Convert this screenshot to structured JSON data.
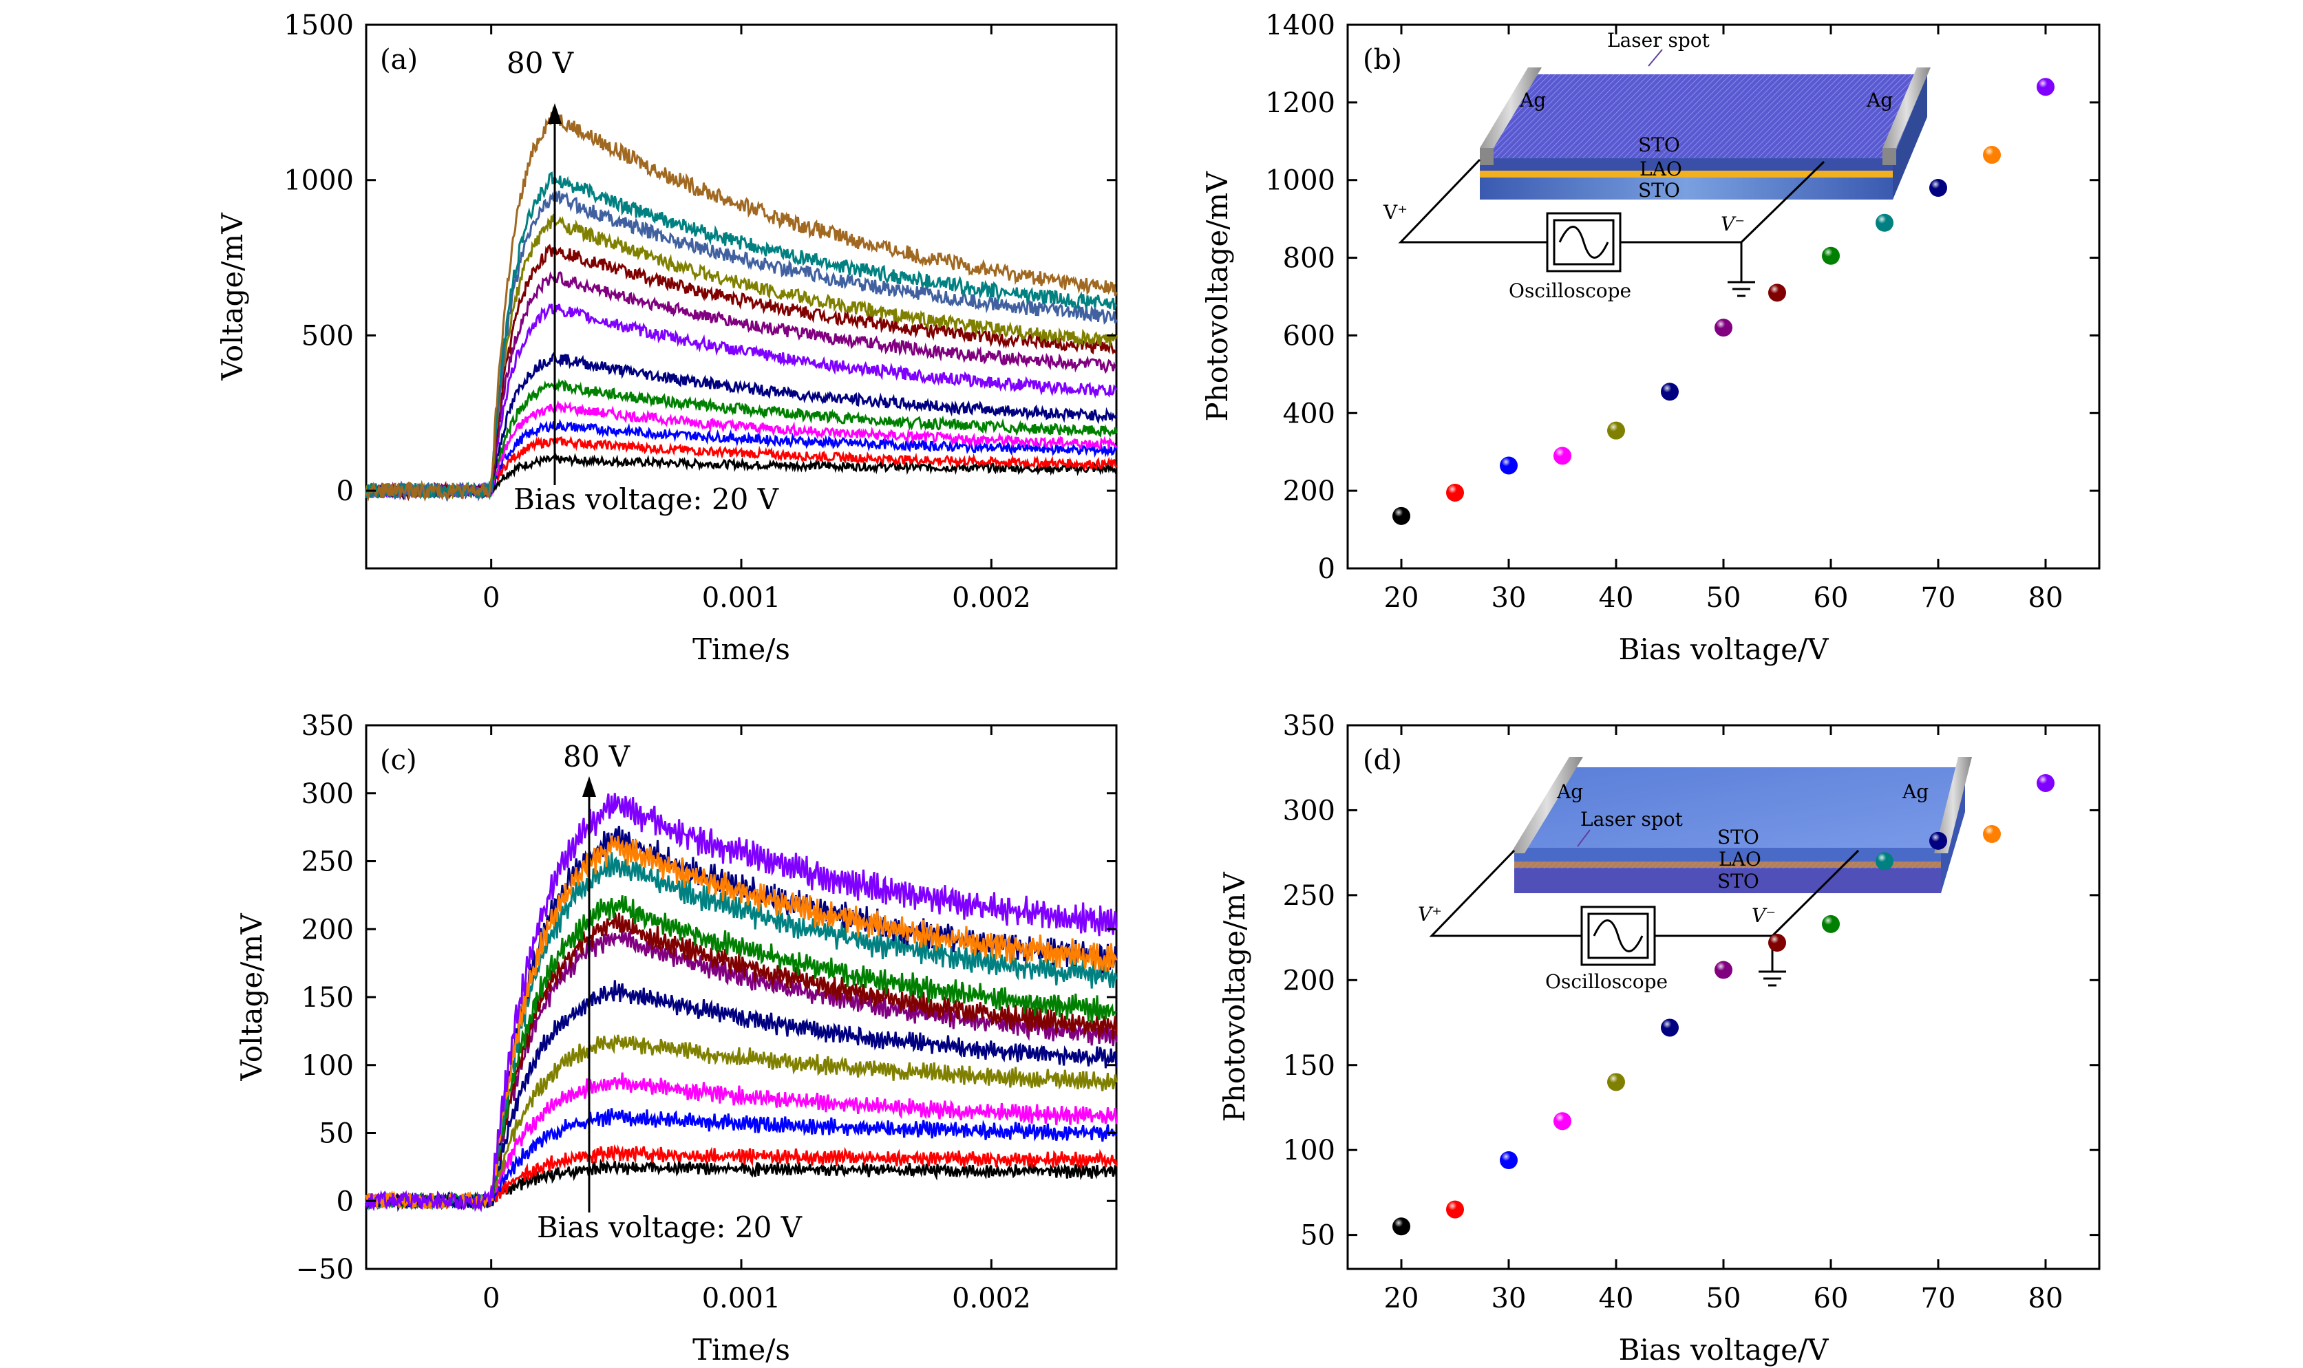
{
  "figure": {
    "colors": [
      "#000000",
      "#ff0000",
      "#0000ff",
      "#ff00ff",
      "#808000",
      "#000080",
      "#800080",
      "#008000",
      "#800000",
      "#008080",
      "#000080",
      "#ff8000",
      "#8000ff"
    ],
    "bias_voltages": [
      20,
      25,
      30,
      35,
      40,
      45,
      50,
      55,
      60,
      65,
      70,
      75,
      80
    ]
  },
  "chart_data": [
    {
      "panel": "(a)",
      "type": "line",
      "xlabel": "Time/s",
      "ylabel": "Voltage/mV",
      "xlim": [
        -0.0005,
        0.0025
      ],
      "ylim": [
        -250,
        1500
      ],
      "xticks": [
        0,
        0.001,
        0.002
      ],
      "xtick_labels": [
        "0",
        "0.001",
        "0.002"
      ],
      "yticks": [
        0,
        500,
        1000,
        1500
      ],
      "ytick_labels": [
        "0",
        "500",
        "1000",
        "1500"
      ],
      "annotation_top": "80 V",
      "annotation_bottom": "Bias voltage: 20 V",
      "series": [
        {
          "color": "#000000",
          "peak": 100,
          "end": 70
        },
        {
          "color": "#ff0000",
          "peak": 160,
          "end": 85
        },
        {
          "color": "#0000ff",
          "peak": 210,
          "end": 130
        },
        {
          "color": "#ff00ff",
          "peak": 270,
          "end": 150
        },
        {
          "color": "#008000",
          "peak": 340,
          "end": 190
        },
        {
          "color": "#000080",
          "peak": 430,
          "end": 240
        },
        {
          "color": "#8000ff",
          "peak": 590,
          "end": 320
        },
        {
          "color": "#800080",
          "peak": 690,
          "end": 400
        },
        {
          "color": "#800000",
          "peak": 780,
          "end": 460
        },
        {
          "color": "#808000",
          "peak": 870,
          "end": 480
        },
        {
          "color": "#4060a0",
          "peak": 950,
          "end": 560
        },
        {
          "color": "#008080",
          "peak": 1010,
          "end": 600
        },
        {
          "color": "#a06820",
          "peak": 1210,
          "end": 650
        }
      ]
    },
    {
      "panel": "(b)",
      "type": "scatter",
      "xlabel": "Bias voltage/V",
      "ylabel": "Photovoltage/mV",
      "xlim": [
        15,
        85
      ],
      "ylim": [
        0,
        1400
      ],
      "xticks": [
        20,
        30,
        40,
        50,
        60,
        70,
        80
      ],
      "yticks": [
        0,
        200,
        400,
        600,
        800,
        1000,
        1200,
        1400
      ],
      "points": [
        {
          "x": 20,
          "y": 135,
          "color": "#000000"
        },
        {
          "x": 25,
          "y": 195,
          "color": "#ff0000"
        },
        {
          "x": 30,
          "y": 265,
          "color": "#0000ff"
        },
        {
          "x": 35,
          "y": 290,
          "color": "#ff00ff"
        },
        {
          "x": 40,
          "y": 355,
          "color": "#808000"
        },
        {
          "x": 45,
          "y": 455,
          "color": "#000080"
        },
        {
          "x": 50,
          "y": 620,
          "color": "#800080"
        },
        {
          "x": 55,
          "y": 710,
          "color": "#800000"
        },
        {
          "x": 60,
          "y": 805,
          "color": "#008000"
        },
        {
          "x": 65,
          "y": 890,
          "color": "#008080"
        },
        {
          "x": 70,
          "y": 980,
          "color": "#000080"
        },
        {
          "x": 75,
          "y": 1065,
          "color": "#ff8000"
        },
        {
          "x": 80,
          "y": 1240,
          "color": "#8000ff"
        }
      ],
      "inset": {
        "laser_spot": "Laser spot",
        "ag_left": "Ag",
        "ag_right": "Ag",
        "layer_top": "STO",
        "layer_mid": "LAO",
        "layer_bottom": "STO",
        "v_plus": "V⁺",
        "v_minus": "V⁻",
        "oscilloscope": "Oscilloscope"
      }
    },
    {
      "panel": "(c)",
      "type": "line",
      "xlabel": "Time/s",
      "ylabel": "Voltage/mV",
      "xlim": [
        -0.0005,
        0.0025
      ],
      "ylim": [
        -50,
        350
      ],
      "xticks": [
        0,
        0.001,
        0.002
      ],
      "xtick_labels": [
        "0",
        "0.001",
        "0.002"
      ],
      "yticks": [
        -50,
        0,
        50,
        100,
        150,
        200,
        250,
        300,
        350
      ],
      "ytick_labels": [
        "−50",
        "0",
        "50",
        "100",
        "150",
        "200",
        "250",
        "300",
        "350"
      ],
      "annotation_top": "80 V",
      "annotation_bottom": "Bias voltage: 20 V",
      "series": [
        {
          "color": "#000000",
          "peak": 25,
          "end": 22
        },
        {
          "color": "#ff0000",
          "peak": 35,
          "end": 30
        },
        {
          "color": "#0000ff",
          "peak": 62,
          "end": 50
        },
        {
          "color": "#ff00ff",
          "peak": 88,
          "end": 62
        },
        {
          "color": "#808000",
          "peak": 118,
          "end": 88
        },
        {
          "color": "#000080",
          "peak": 155,
          "end": 105
        },
        {
          "color": "#800080",
          "peak": 195,
          "end": 122
        },
        {
          "color": "#800000",
          "peak": 205,
          "end": 128
        },
        {
          "color": "#008000",
          "peak": 218,
          "end": 140
        },
        {
          "color": "#008080",
          "peak": 248,
          "end": 165
        },
        {
          "color": "#000080",
          "peak": 268,
          "end": 178
        },
        {
          "color": "#ff8000",
          "peak": 262,
          "end": 178
        },
        {
          "color": "#8000ff",
          "peak": 292,
          "end": 205
        }
      ]
    },
    {
      "panel": "(d)",
      "type": "scatter",
      "xlabel": "Bias voltage/V",
      "ylabel": "Photovoltage/mV",
      "xlim": [
        15,
        85
      ],
      "ylim": [
        30,
        350
      ],
      "xticks": [
        20,
        30,
        40,
        50,
        60,
        70,
        80
      ],
      "yticks": [
        50,
        100,
        150,
        200,
        250,
        300,
        350
      ],
      "points": [
        {
          "x": 20,
          "y": 55,
          "color": "#000000"
        },
        {
          "x": 25,
          "y": 65,
          "color": "#ff0000"
        },
        {
          "x": 30,
          "y": 94,
          "color": "#0000ff"
        },
        {
          "x": 35,
          "y": 117,
          "color": "#ff00ff"
        },
        {
          "x": 40,
          "y": 140,
          "color": "#808000"
        },
        {
          "x": 45,
          "y": 172,
          "color": "#000080"
        },
        {
          "x": 50,
          "y": 206,
          "color": "#800080"
        },
        {
          "x": 55,
          "y": 222,
          "color": "#800000"
        },
        {
          "x": 60,
          "y": 233,
          "color": "#008000"
        },
        {
          "x": 65,
          "y": 270,
          "color": "#008080"
        },
        {
          "x": 70,
          "y": 282,
          "color": "#000080"
        },
        {
          "x": 75,
          "y": 286,
          "color": "#ff8000"
        },
        {
          "x": 80,
          "y": 316,
          "color": "#8000ff"
        }
      ],
      "inset": {
        "laser_spot": "Laser spot",
        "ag_left": "Ag",
        "ag_right": "Ag",
        "layer_top": "STO",
        "layer_mid": "LAO",
        "layer_bottom": "STO",
        "v_plus": "V⁺",
        "v_minus": "V⁻",
        "oscilloscope": "Oscilloscope"
      }
    }
  ]
}
